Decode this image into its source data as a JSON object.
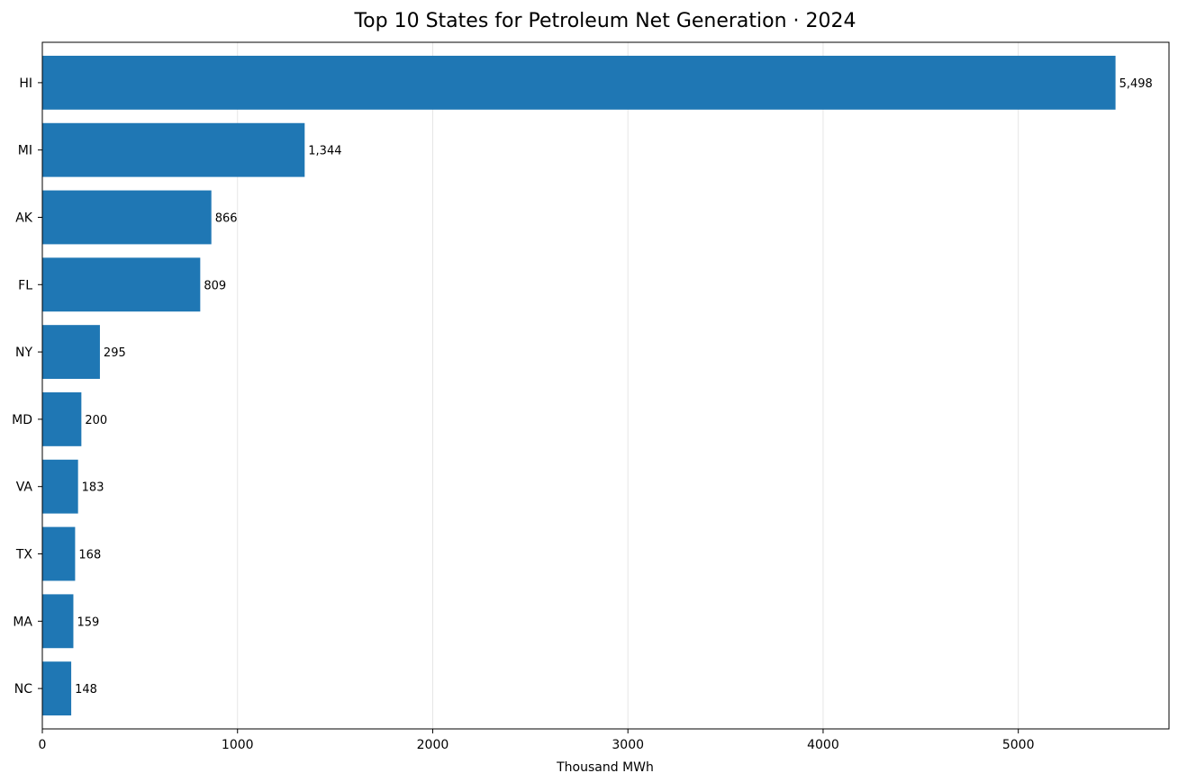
{
  "chart_data": {
    "type": "bar",
    "orientation": "horizontal",
    "title": "Top 10 States for Petroleum Net Generation · 2024",
    "xlabel": "Thousand MWh",
    "ylabel": "",
    "categories": [
      "HI",
      "MI",
      "AK",
      "FL",
      "NY",
      "MD",
      "VA",
      "TX",
      "MA",
      "NC"
    ],
    "values": [
      5498,
      1344,
      866,
      809,
      295,
      200,
      183,
      168,
      159,
      148
    ],
    "value_labels": [
      "5,498",
      "1,344",
      "866",
      "809",
      "295",
      "200",
      "183",
      "168",
      "159",
      "148"
    ],
    "xlim": [
      0,
      5772
    ],
    "xticks": [
      0,
      1000,
      2000,
      3000,
      4000,
      5000
    ],
    "xtick_labels": [
      "0",
      "1000",
      "2000",
      "3000",
      "4000",
      "5000"
    ],
    "grid": "x",
    "bar_color": "#1f77b4",
    "grid_color": "#e6e6e6"
  }
}
